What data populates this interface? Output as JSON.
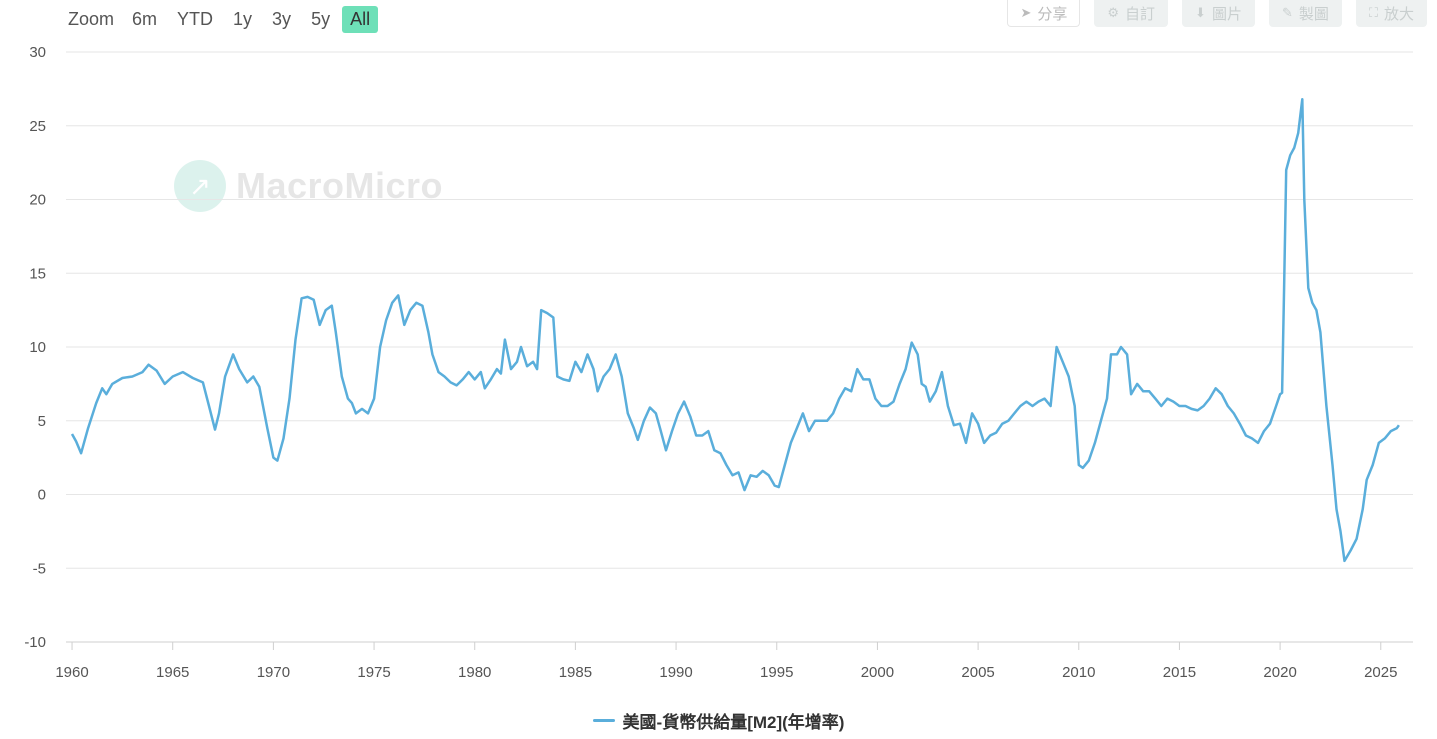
{
  "zoom": {
    "label": "Zoom",
    "buttons": [
      "6m",
      "YTD",
      "1y",
      "3y",
      "5y",
      "All"
    ],
    "active": "All"
  },
  "toolbar": {
    "share": "分享",
    "customize": "自訂",
    "image": "圖片",
    "draw": "製圖",
    "fullscreen": "放大"
  },
  "watermark": "MacroMicro",
  "colors": {
    "series": "#5aaedb",
    "active_zoom": "#6ee0b8",
    "grid": "#e6e6e6"
  },
  "chart_data": {
    "type": "line",
    "title": "",
    "xlabel": "",
    "ylabel": "",
    "xlim": [
      1959.7,
      2026.6
    ],
    "ylim": [
      -10,
      30
    ],
    "yticks": [
      30,
      25,
      20,
      15,
      10,
      5,
      0,
      -5,
      -10
    ],
    "xticks": [
      1960,
      1965,
      1970,
      1975,
      1980,
      1985,
      1990,
      1995,
      2000,
      2005,
      2010,
      2015,
      2020,
      2025
    ],
    "grid": true,
    "legend_position": "bottom-center",
    "series": [
      {
        "name": "美國-貨幣供給量[M2](年增率)",
        "points": [
          [
            1960.0,
            4.1
          ],
          [
            1960.2,
            3.6
          ],
          [
            1960.45,
            2.8
          ],
          [
            1960.8,
            4.5
          ],
          [
            1961.2,
            6.2
          ],
          [
            1961.5,
            7.2
          ],
          [
            1961.7,
            6.8
          ],
          [
            1962.0,
            7.5
          ],
          [
            1962.5,
            7.9
          ],
          [
            1963.0,
            8.0
          ],
          [
            1963.5,
            8.3
          ],
          [
            1963.8,
            8.8
          ],
          [
            1964.2,
            8.4
          ],
          [
            1964.6,
            7.5
          ],
          [
            1965.0,
            8.0
          ],
          [
            1965.5,
            8.3
          ],
          [
            1966.0,
            7.9
          ],
          [
            1966.5,
            7.6
          ],
          [
            1966.8,
            6.0
          ],
          [
            1967.1,
            4.4
          ],
          [
            1967.3,
            5.5
          ],
          [
            1967.6,
            8.0
          ],
          [
            1968.0,
            9.5
          ],
          [
            1968.3,
            8.5
          ],
          [
            1968.7,
            7.6
          ],
          [
            1969.0,
            8.0
          ],
          [
            1969.3,
            7.3
          ],
          [
            1969.7,
            4.5
          ],
          [
            1970.0,
            2.5
          ],
          [
            1970.2,
            2.3
          ],
          [
            1970.5,
            3.8
          ],
          [
            1970.8,
            6.5
          ],
          [
            1971.1,
            10.5
          ],
          [
            1971.4,
            13.3
          ],
          [
            1971.7,
            13.4
          ],
          [
            1972.0,
            13.2
          ],
          [
            1972.3,
            11.5
          ],
          [
            1972.6,
            12.5
          ],
          [
            1972.9,
            12.8
          ],
          [
            1973.1,
            11.0
          ],
          [
            1973.4,
            8.0
          ],
          [
            1973.7,
            6.5
          ],
          [
            1973.9,
            6.2
          ],
          [
            1974.1,
            5.5
          ],
          [
            1974.4,
            5.8
          ],
          [
            1974.7,
            5.5
          ],
          [
            1975.0,
            6.5
          ],
          [
            1975.3,
            10.0
          ],
          [
            1975.6,
            11.8
          ],
          [
            1975.9,
            13.0
          ],
          [
            1976.2,
            13.5
          ],
          [
            1976.5,
            11.5
          ],
          [
            1976.8,
            12.5
          ],
          [
            1977.1,
            13.0
          ],
          [
            1977.4,
            12.8
          ],
          [
            1977.7,
            11.0
          ],
          [
            1977.9,
            9.5
          ],
          [
            1978.2,
            8.3
          ],
          [
            1978.5,
            8.0
          ],
          [
            1978.8,
            7.6
          ],
          [
            1979.1,
            7.4
          ],
          [
            1979.4,
            7.8
          ],
          [
            1979.7,
            8.3
          ],
          [
            1980.0,
            7.8
          ],
          [
            1980.3,
            8.3
          ],
          [
            1980.5,
            7.2
          ],
          [
            1980.8,
            7.8
          ],
          [
            1981.1,
            8.5
          ],
          [
            1981.3,
            8.2
          ],
          [
            1981.5,
            10.5
          ],
          [
            1981.8,
            8.5
          ],
          [
            1982.1,
            9.0
          ],
          [
            1982.3,
            10.0
          ],
          [
            1982.6,
            8.7
          ],
          [
            1982.9,
            9.0
          ],
          [
            1983.1,
            8.5
          ],
          [
            1983.3,
            12.5
          ],
          [
            1983.6,
            12.3
          ],
          [
            1983.9,
            12.0
          ],
          [
            1984.1,
            8.0
          ],
          [
            1984.4,
            7.8
          ],
          [
            1984.7,
            7.7
          ],
          [
            1985.0,
            9.0
          ],
          [
            1985.3,
            8.3
          ],
          [
            1985.6,
            9.5
          ],
          [
            1985.9,
            8.5
          ],
          [
            1986.1,
            7.0
          ],
          [
            1986.4,
            8.0
          ],
          [
            1986.7,
            8.5
          ],
          [
            1987.0,
            9.5
          ],
          [
            1987.3,
            8.0
          ],
          [
            1987.6,
            5.5
          ],
          [
            1987.9,
            4.5
          ],
          [
            1988.1,
            3.7
          ],
          [
            1988.4,
            5.0
          ],
          [
            1988.7,
            5.9
          ],
          [
            1989.0,
            5.5
          ],
          [
            1989.2,
            4.5
          ],
          [
            1989.5,
            3.0
          ],
          [
            1989.8,
            4.3
          ],
          [
            1990.1,
            5.5
          ],
          [
            1990.4,
            6.3
          ],
          [
            1990.7,
            5.3
          ],
          [
            1991.0,
            4.0
          ],
          [
            1991.3,
            4.0
          ],
          [
            1991.6,
            4.3
          ],
          [
            1991.9,
            3.0
          ],
          [
            1992.2,
            2.8
          ],
          [
            1992.5,
            2.0
          ],
          [
            1992.8,
            1.3
          ],
          [
            1993.1,
            1.5
          ],
          [
            1993.4,
            0.3
          ],
          [
            1993.7,
            1.3
          ],
          [
            1994.0,
            1.2
          ],
          [
            1994.3,
            1.6
          ],
          [
            1994.6,
            1.3
          ],
          [
            1994.9,
            0.6
          ],
          [
            1995.1,
            0.5
          ],
          [
            1995.4,
            2.0
          ],
          [
            1995.7,
            3.5
          ],
          [
            1996.0,
            4.5
          ],
          [
            1996.3,
            5.5
          ],
          [
            1996.6,
            4.3
          ],
          [
            1996.9,
            5.0
          ],
          [
            1997.2,
            5.0
          ],
          [
            1997.5,
            5.0
          ],
          [
            1997.8,
            5.5
          ],
          [
            1998.1,
            6.5
          ],
          [
            1998.4,
            7.2
          ],
          [
            1998.7,
            7.0
          ],
          [
            1999.0,
            8.5
          ],
          [
            1999.3,
            7.8
          ],
          [
            1999.6,
            7.8
          ],
          [
            1999.9,
            6.5
          ],
          [
            2000.2,
            6.0
          ],
          [
            2000.5,
            6.0
          ],
          [
            2000.8,
            6.3
          ],
          [
            2001.1,
            7.5
          ],
          [
            2001.4,
            8.5
          ],
          [
            2001.7,
            10.3
          ],
          [
            2002.0,
            9.5
          ],
          [
            2002.2,
            7.5
          ],
          [
            2002.4,
            7.3
          ],
          [
            2002.6,
            6.3
          ],
          [
            2002.9,
            7.0
          ],
          [
            2003.2,
            8.3
          ],
          [
            2003.5,
            6.0
          ],
          [
            2003.8,
            4.7
          ],
          [
            2004.1,
            4.8
          ],
          [
            2004.4,
            3.5
          ],
          [
            2004.7,
            5.5
          ],
          [
            2005.0,
            4.8
          ],
          [
            2005.3,
            3.5
          ],
          [
            2005.6,
            4.0
          ],
          [
            2005.9,
            4.2
          ],
          [
            2006.2,
            4.8
          ],
          [
            2006.5,
            5.0
          ],
          [
            2006.8,
            5.5
          ],
          [
            2007.1,
            6.0
          ],
          [
            2007.4,
            6.3
          ],
          [
            2007.7,
            6.0
          ],
          [
            2008.0,
            6.3
          ],
          [
            2008.3,
            6.5
          ],
          [
            2008.6,
            6.0
          ],
          [
            2008.9,
            10.0
          ],
          [
            2009.2,
            9.0
          ],
          [
            2009.5,
            8.0
          ],
          [
            2009.8,
            6.0
          ],
          [
            2010.0,
            2.0
          ],
          [
            2010.2,
            1.8
          ],
          [
            2010.5,
            2.3
          ],
          [
            2010.8,
            3.5
          ],
          [
            2011.1,
            5.0
          ],
          [
            2011.4,
            6.5
          ],
          [
            2011.6,
            9.5
          ],
          [
            2011.9,
            9.5
          ],
          [
            2012.1,
            10.0
          ],
          [
            2012.4,
            9.5
          ],
          [
            2012.6,
            6.8
          ],
          [
            2012.9,
            7.5
          ],
          [
            2013.2,
            7.0
          ],
          [
            2013.5,
            7.0
          ],
          [
            2013.8,
            6.5
          ],
          [
            2014.1,
            6.0
          ],
          [
            2014.4,
            6.5
          ],
          [
            2014.7,
            6.3
          ],
          [
            2015.0,
            6.0
          ],
          [
            2015.3,
            6.0
          ],
          [
            2015.6,
            5.8
          ],
          [
            2015.9,
            5.7
          ],
          [
            2016.2,
            6.0
          ],
          [
            2016.5,
            6.5
          ],
          [
            2016.8,
            7.2
          ],
          [
            2017.1,
            6.8
          ],
          [
            2017.4,
            6.0
          ],
          [
            2017.7,
            5.5
          ],
          [
            2018.0,
            4.8
          ],
          [
            2018.3,
            4.0
          ],
          [
            2018.6,
            3.8
          ],
          [
            2018.9,
            3.5
          ],
          [
            2019.2,
            4.3
          ],
          [
            2019.5,
            4.8
          ],
          [
            2019.8,
            6.0
          ],
          [
            2020.0,
            6.8
          ],
          [
            2020.1,
            6.9
          ],
          [
            2020.2,
            14.0
          ],
          [
            2020.3,
            22.0
          ],
          [
            2020.5,
            23.0
          ],
          [
            2020.7,
            23.5
          ],
          [
            2020.9,
            24.5
          ],
          [
            2021.1,
            26.8
          ],
          [
            2021.2,
            20.0
          ],
          [
            2021.4,
            14.0
          ],
          [
            2021.6,
            13.0
          ],
          [
            2021.8,
            12.5
          ],
          [
            2022.0,
            11.0
          ],
          [
            2022.3,
            6.0
          ],
          [
            2022.6,
            2.0
          ],
          [
            2022.8,
            -1.0
          ],
          [
            2023.0,
            -2.5
          ],
          [
            2023.2,
            -4.5
          ],
          [
            2023.5,
            -3.8
          ],
          [
            2023.8,
            -3.0
          ],
          [
            2024.1,
            -1.0
          ],
          [
            2024.3,
            1.0
          ],
          [
            2024.6,
            2.0
          ],
          [
            2024.9,
            3.5
          ],
          [
            2025.2,
            3.8
          ],
          [
            2025.5,
            4.3
          ],
          [
            2025.8,
            4.5
          ],
          [
            2025.9,
            4.7
          ]
        ]
      }
    ]
  }
}
